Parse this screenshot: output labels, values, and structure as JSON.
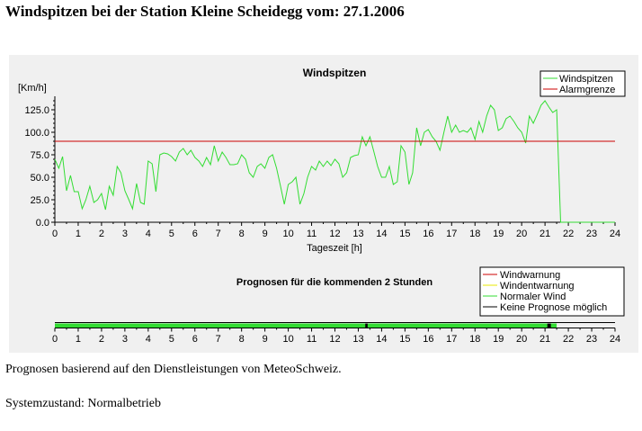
{
  "page": {
    "title": "Windspitzen bei der Station Kleine Scheidegg vom: 27.1.2006",
    "note": "Prognosen basierend auf den Dienstleistungen von MeteoSchweiz.",
    "status": "Systemzustand: Normalbetrieb"
  },
  "chart_data": [
    {
      "type": "line",
      "title": "Windspitzen",
      "xlabel": "Tageszeit [h]",
      "ylabel": "[Km/h]",
      "xlim": [
        0,
        24
      ],
      "ylim": [
        0,
        140
      ],
      "xticks": [
        "0",
        "1",
        "2",
        "3",
        "4",
        "5",
        "6",
        "7",
        "8",
        "9",
        "10",
        "11",
        "12",
        "13",
        "14",
        "15",
        "16",
        "17",
        "18",
        "19",
        "20",
        "21",
        "22",
        "23",
        "24"
      ],
      "yticks": [
        "0.0",
        "25.0",
        "50.0",
        "75.0",
        "100.0",
        "125.0"
      ],
      "legend_position": "top-right",
      "series": [
        {
          "name": "Windspitzen",
          "color": "#33dd33",
          "x": [
            0,
            0.17,
            0.33,
            0.5,
            0.67,
            0.83,
            1,
            1.17,
            1.33,
            1.5,
            1.67,
            1.83,
            2,
            2.17,
            2.33,
            2.5,
            2.67,
            2.83,
            3,
            3.17,
            3.33,
            3.5,
            3.67,
            3.83,
            4,
            4.17,
            4.33,
            4.5,
            4.67,
            4.83,
            5,
            5.17,
            5.33,
            5.5,
            5.67,
            5.83,
            6,
            6.17,
            6.33,
            6.5,
            6.67,
            6.83,
            7,
            7.17,
            7.33,
            7.5,
            7.67,
            7.83,
            8,
            8.17,
            8.33,
            8.5,
            8.67,
            8.83,
            9,
            9.17,
            9.33,
            9.5,
            9.67,
            9.83,
            10,
            10.17,
            10.33,
            10.5,
            10.67,
            10.83,
            11,
            11.17,
            11.33,
            11.5,
            11.67,
            11.83,
            12,
            12.17,
            12.33,
            12.5,
            12.67,
            12.83,
            13,
            13.17,
            13.33,
            13.5,
            13.67,
            13.83,
            14,
            14.17,
            14.33,
            14.5,
            14.67,
            14.83,
            15,
            15.17,
            15.33,
            15.5,
            15.67,
            15.83,
            16,
            16.17,
            16.33,
            16.5,
            16.67,
            16.83,
            17,
            17.17,
            17.33,
            17.5,
            17.67,
            17.83,
            18,
            18.17,
            18.33,
            18.5,
            18.67,
            18.83,
            19,
            19.17,
            19.33,
            19.5,
            19.67,
            19.83,
            20,
            20.17,
            20.33,
            20.5,
            20.67,
            20.83,
            21,
            21.17,
            21.33,
            21.5,
            21.67,
            21.83,
            22,
            22.17,
            22.33,
            22.5,
            22.67,
            22.83,
            23,
            23.17,
            23.33,
            23.5,
            23.67,
            23.83,
            24
          ],
          "values": [
            70,
            60,
            73,
            35,
            52,
            34,
            34,
            15,
            25,
            40,
            22,
            25,
            32,
            14,
            40,
            30,
            62,
            55,
            35,
            25,
            15,
            43,
            22,
            20,
            68,
            65,
            34,
            75,
            77,
            76,
            73,
            68,
            78,
            82,
            75,
            80,
            72,
            68,
            62,
            72,
            64,
            85,
            68,
            78,
            72,
            64,
            64,
            65,
            75,
            70,
            55,
            50,
            62,
            65,
            60,
            72,
            75,
            60,
            40,
            20,
            42,
            45,
            50,
            20,
            32,
            50,
            62,
            58,
            68,
            62,
            68,
            63,
            70,
            65,
            50,
            55,
            72,
            74,
            75,
            95,
            85,
            95,
            78,
            62,
            50,
            50,
            62,
            42,
            45,
            85,
            78,
            42,
            55,
            105,
            85,
            100,
            103,
            95,
            90,
            80,
            100,
            118,
            100,
            108,
            100,
            102,
            100,
            105,
            92,
            112,
            100,
            118,
            130,
            125,
            102,
            105,
            115,
            118,
            112,
            105,
            100,
            88,
            118,
            110,
            120,
            130,
            135,
            128,
            122,
            125,
            0,
            0,
            0,
            0,
            0,
            0,
            0,
            0,
            0,
            0,
            0,
            0,
            0,
            0,
            0
          ]
        },
        {
          "name": "Alarmgrenze",
          "color": "#cc0000",
          "x": [
            0,
            24
          ],
          "values": [
            90,
            90
          ]
        }
      ]
    },
    {
      "type": "timeline",
      "title": "Prognosen für die kommenden 2 Stunden",
      "xlim": [
        0,
        24
      ],
      "xticks": [
        "0",
        "1",
        "2",
        "3",
        "4",
        "5",
        "6",
        "7",
        "8",
        "9",
        "10",
        "11",
        "12",
        "13",
        "14",
        "15",
        "16",
        "17",
        "18",
        "19",
        "20",
        "21",
        "22",
        "23",
        "24"
      ],
      "legend_position": "top-right",
      "legend": [
        {
          "name": "Windwarnung",
          "color": "#cc0000"
        },
        {
          "name": "Windentwarnung",
          "color": "#e8e800"
        },
        {
          "name": "Normaler Wind",
          "color": "#33dd33"
        },
        {
          "name": "Keine Prognose möglich",
          "color": "#000000"
        }
      ],
      "segments": [
        {
          "start": 0,
          "end": 21.5,
          "state": "Normaler Wind",
          "color": "#33dd33"
        },
        {
          "start": 13.3,
          "end": 13.4,
          "state": "Keine Prognose möglich",
          "color": "#000000"
        },
        {
          "start": 21.1,
          "end": 21.25,
          "state": "Keine Prognose möglich",
          "color": "#000000"
        }
      ]
    }
  ]
}
